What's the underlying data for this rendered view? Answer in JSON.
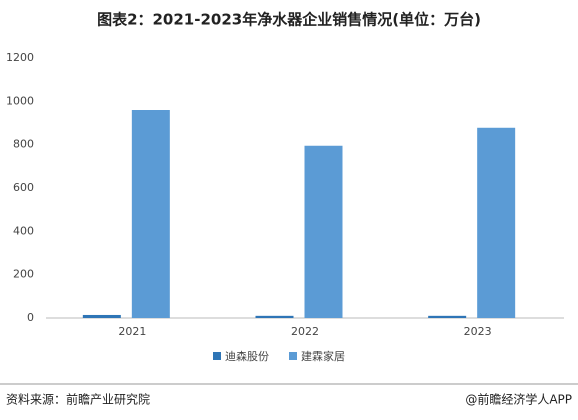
{
  "chart_data": {
    "type": "bar",
    "title": "图表2：2021-2023年净水器企业销售情况(单位：万台)",
    "categories": [
      "2021",
      "2022",
      "2023"
    ],
    "series": [
      {
        "name": "迪森股份",
        "color": "#2e75b6",
        "values": [
          14,
          10,
          10
        ]
      },
      {
        "name": "建霖家居",
        "color": "#5b9bd5",
        "values": [
          960,
          795,
          878
        ]
      }
    ],
    "ylim": [
      0,
      1200
    ],
    "yticks": [
      0,
      200,
      400,
      600,
      800,
      1000,
      1200
    ],
    "grid": false,
    "legend": "bottom"
  },
  "footer": {
    "source": "资料来源：前瞻产业研究院",
    "brand": "@前瞻经济学人APP"
  }
}
